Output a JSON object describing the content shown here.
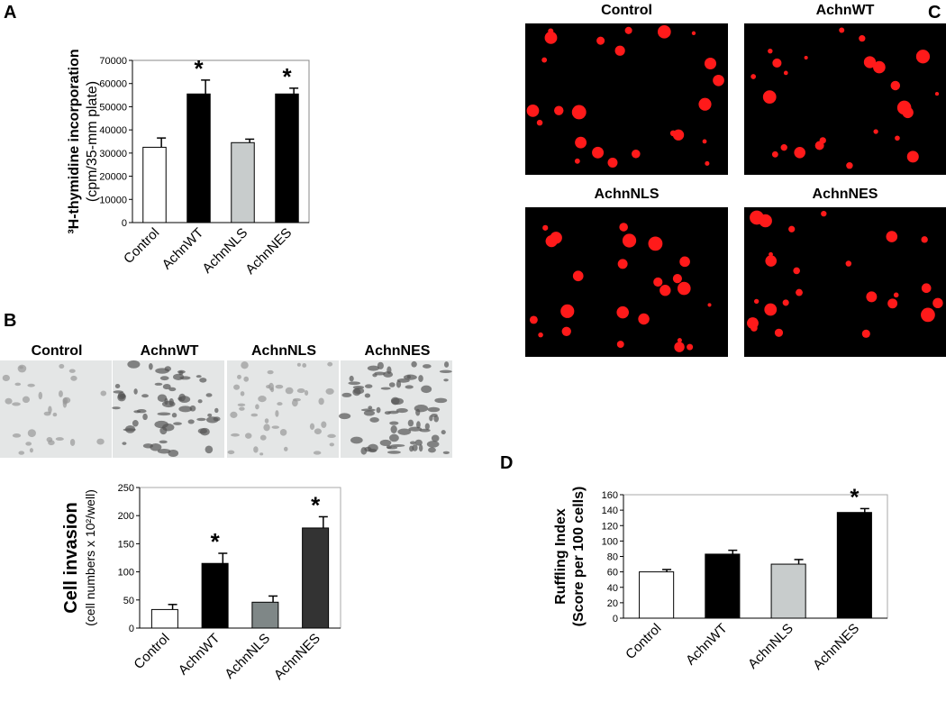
{
  "panel_labels": [
    "A",
    "B",
    "C",
    "D"
  ],
  "micrographs_b": {
    "labels": [
      "Control",
      "AchnWT",
      "AchnNLS",
      "AchnNES"
    ]
  },
  "micrographs_c": {
    "labels": [
      "Control",
      "AchnWT",
      "AchnNLS",
      "AchnNES"
    ]
  },
  "chart_data": [
    {
      "type": "bar",
      "y_label": [
        "³H-thymidine incorporation",
        "(cpm/35-mm  plate)"
      ],
      "categories": [
        "Control",
        "AchnWT",
        "AchnNLS",
        "AchnNES"
      ],
      "values": [
        32500,
        55500,
        34500,
        55500
      ],
      "errors": [
        4000,
        6000,
        1500,
        2500
      ],
      "colors": [
        "#ffffff",
        "#000000",
        "#c8cccc",
        "#000000"
      ],
      "annotations": [
        null,
        "*",
        null,
        "*"
      ],
      "ylim": [
        0,
        70000
      ],
      "yticks": [
        0,
        10000,
        20000,
        30000,
        40000,
        50000,
        60000,
        70000
      ]
    },
    {
      "type": "bar",
      "y_label": [
        "Cell invasion",
        "(cell numbers x 10²/well)"
      ],
      "categories": [
        "Control",
        "AchnWT",
        "AchnNLS",
        "AchnNES"
      ],
      "values": [
        33,
        115,
        46,
        178
      ],
      "errors": [
        9,
        18,
        11,
        20
      ],
      "colors": [
        "#ffffff",
        "#000000",
        "#7f8787",
        "#333333"
      ],
      "annotations": [
        null,
        "*",
        null,
        "*"
      ],
      "ylim": [
        0,
        250
      ],
      "yticks": [
        0,
        50,
        100,
        150,
        200,
        250
      ]
    },
    {
      "type": "bar",
      "y_label": [
        "Ruffling Index",
        "(Score per 100 cells)"
      ],
      "categories": [
        "Control",
        "AchnWT",
        "AchnNLS",
        "AchnNES"
      ],
      "values": [
        60,
        83,
        70,
        137
      ],
      "errors": [
        3,
        5,
        6,
        5
      ],
      "colors": [
        "#ffffff",
        "#000000",
        "#c8cccc",
        "#000000"
      ],
      "annotations": [
        null,
        null,
        null,
        "*"
      ],
      "ylim": [
        0,
        160
      ],
      "yticks": [
        0,
        20,
        40,
        60,
        80,
        100,
        120,
        140,
        160
      ]
    }
  ]
}
